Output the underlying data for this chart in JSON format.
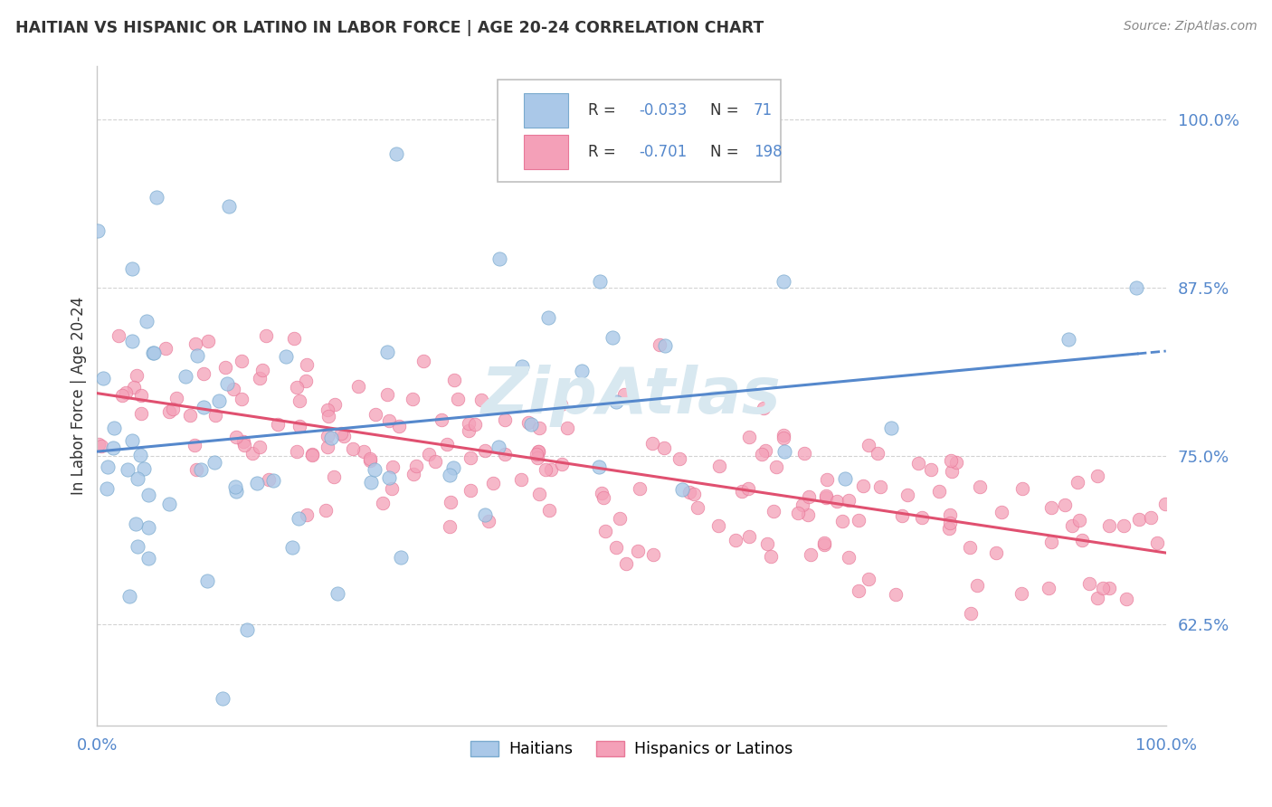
{
  "title": "HAITIAN VS HISPANIC OR LATINO IN LABOR FORCE | AGE 20-24 CORRELATION CHART",
  "source": "Source: ZipAtlas.com",
  "ylabel": "In Labor Force | Age 20-24",
  "ytick_vals": [
    62.5,
    75.0,
    87.5,
    100.0
  ],
  "watermark": "ZipAtlas",
  "legend_haitian_R": "-0.033",
  "legend_haitian_N": "71",
  "legend_hispanic_R": "-0.701",
  "legend_hispanic_N": "198",
  "haitian_color": "#aac8e8",
  "haitian_edge": "#7aaace",
  "hispanic_color": "#f4a0b8",
  "hispanic_edge": "#e87898",
  "blue_line_color": "#5588cc",
  "pink_line_color": "#e05070",
  "background_color": "#ffffff",
  "grid_color": "#c8c8c8",
  "title_color": "#333333",
  "axis_label_color": "#5588cc",
  "text_color": "#333333",
  "source_color": "#888888",
  "watermark_color": "#d8e8f0"
}
